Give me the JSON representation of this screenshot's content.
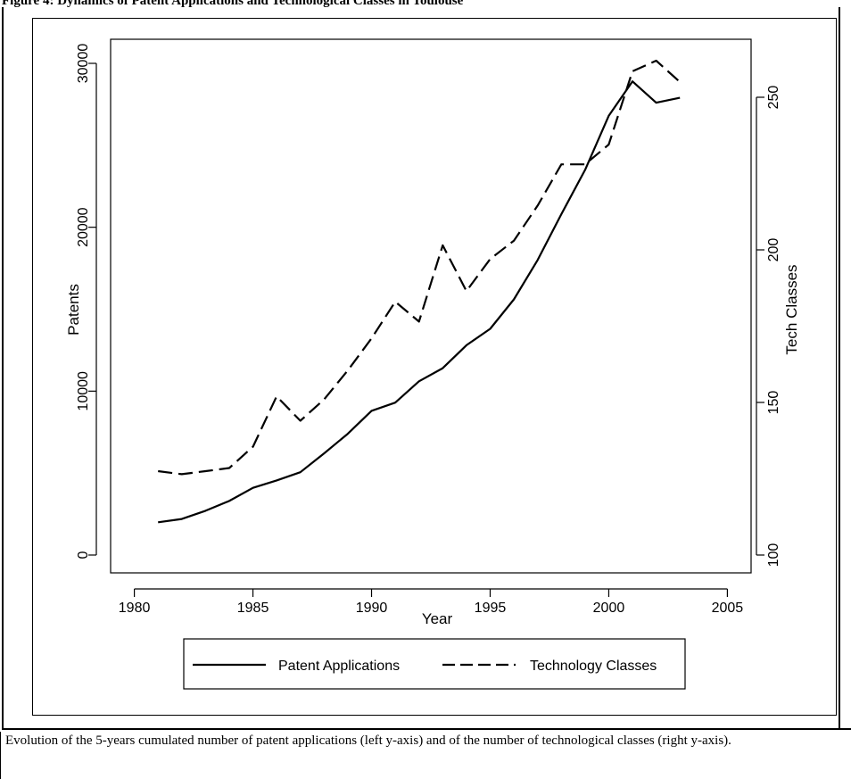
{
  "figure_title": "Figure 4: Dynamics of Patent Applications and Technological Classes in Toulouse",
  "caption": "Evolution of the 5-years cumulated number of patent applications (left y-axis) and of the number of technological classes (right y-axis).",
  "chart_data": {
    "type": "line",
    "xlabel": "Year",
    "ylabel_left": "Patents",
    "ylabel_right": "Tech Classes",
    "xlim": [
      1979,
      2006
    ],
    "ylim_left": [
      0,
      30000
    ],
    "ylim_right": [
      100,
      250
    ],
    "x_ticks": [
      1980,
      1985,
      1990,
      1995,
      2000,
      2005
    ],
    "y_left_ticks": [
      0,
      10000,
      20000,
      30000
    ],
    "y_right_ticks": [
      100,
      150,
      200,
      250
    ],
    "grid": false,
    "legend_position": "bottom",
    "x": [
      1981,
      1982,
      1983,
      1984,
      1985,
      1986,
      1987,
      1988,
      1989,
      1990,
      1991,
      1992,
      1993,
      1994,
      1995,
      1996,
      1997,
      1998,
      1999,
      2000,
      2001,
      2002,
      2003
    ],
    "series": [
      {
        "name": "Patent Applications",
        "axis": "left",
        "style": "solid",
        "color": "#000000",
        "values": [
          2000,
          2200,
          2700,
          3300,
          4100,
          4550,
          5050,
          6200,
          7400,
          8800,
          9300,
          10600,
          11400,
          12800,
          13800,
          15600,
          18000,
          20800,
          23500,
          26800,
          28900,
          27600,
          27900
        ]
      },
      {
        "name": "Technology Classes",
        "axis": "right",
        "style": "dashed",
        "color": "#000000",
        "values": [
          127.5,
          126.5,
          127.5,
          128.5,
          135.5,
          152,
          144,
          151,
          160.5,
          171,
          183,
          176.5,
          201.5,
          186.5,
          197,
          203,
          214.5,
          228,
          228,
          234.5,
          258.5,
          262,
          255
        ]
      }
    ]
  }
}
